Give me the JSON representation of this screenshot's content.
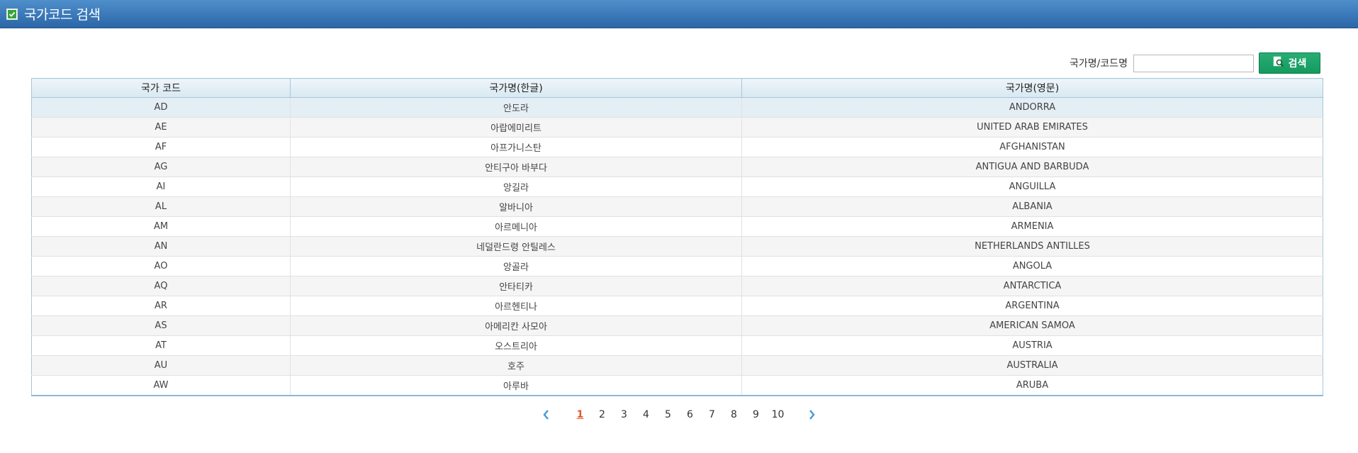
{
  "header": {
    "title": "국가코드 검색",
    "icon": "check-icon",
    "icon_color": "#3aa241"
  },
  "search": {
    "label": "국가명/코드명",
    "value": "",
    "placeholder": "",
    "button_label": "검색",
    "button_icon": "magnifier-doc-icon"
  },
  "table": {
    "columns": [
      "국가 코드",
      "국가명(한글)",
      "국가명(영문)"
    ],
    "rows": [
      {
        "code": "AD",
        "name_ko": "안도라",
        "name_en": "ANDORRA"
      },
      {
        "code": "AE",
        "name_ko": "아랍에미리트",
        "name_en": "UNITED ARAB EMIRATES"
      },
      {
        "code": "AF",
        "name_ko": "아프가니스탄",
        "name_en": "AFGHANISTAN"
      },
      {
        "code": "AG",
        "name_ko": "안티구아 바부다",
        "name_en": "ANTIGUA AND BARBUDA"
      },
      {
        "code": "AI",
        "name_ko": "앙길라",
        "name_en": "ANGUILLA"
      },
      {
        "code": "AL",
        "name_ko": "알바니아",
        "name_en": "ALBANIA"
      },
      {
        "code": "AM",
        "name_ko": "아르메니아",
        "name_en": "ARMENIA"
      },
      {
        "code": "AN",
        "name_ko": "네덜란드령 안틸레스",
        "name_en": "NETHERLANDS ANTILLES"
      },
      {
        "code": "AO",
        "name_ko": "앙골라",
        "name_en": "ANGOLA"
      },
      {
        "code": "AQ",
        "name_ko": "안타티카",
        "name_en": "ANTARCTICA"
      },
      {
        "code": "AR",
        "name_ko": "아르헨티나",
        "name_en": "ARGENTINA"
      },
      {
        "code": "AS",
        "name_ko": "아메리칸 사모아",
        "name_en": "AMERICAN SAMOA"
      },
      {
        "code": "AT",
        "name_ko": "오스트리아",
        "name_en": "AUSTRIA"
      },
      {
        "code": "AU",
        "name_ko": "호주",
        "name_en": "AUSTRALIA"
      },
      {
        "code": "AW",
        "name_ko": "아루바",
        "name_en": "ARUBA"
      }
    ]
  },
  "pagination": {
    "pages": [
      "1",
      "2",
      "3",
      "4",
      "5",
      "6",
      "7",
      "8",
      "9",
      "10"
    ],
    "current": "1",
    "prev_icon": "chevron-left-icon",
    "next_icon": "chevron-right-icon",
    "arrow_color": "#4a9bd8"
  }
}
